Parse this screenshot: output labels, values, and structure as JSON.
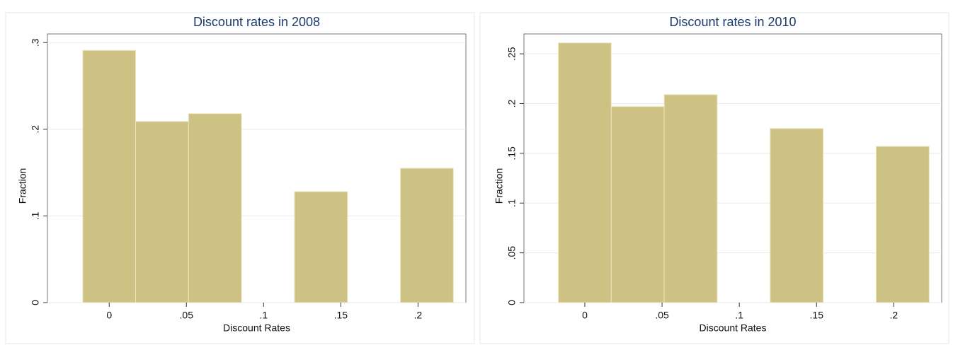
{
  "chart_data": [
    {
      "type": "histogram",
      "title": "Discount rates in 2008",
      "x_label": "Discount Rates",
      "y_label": "Fraction",
      "bins": [
        -0.0171,
        0.0171,
        0.0514,
        0.0857,
        0.12,
        0.1543,
        0.1886,
        0.2229
      ],
      "values": [
        0.291,
        0.209,
        0.218,
        0,
        0.128,
        0,
        0.155
      ],
      "color": "#cdc283",
      "xlim": [
        -0.04,
        0.231
      ],
      "ylim": [
        0,
        0.31
      ],
      "xticks": [
        0,
        {
          "value": 0.05,
          "label": ".05"
        },
        {
          "value": 0.1,
          "label": ".1"
        },
        {
          "value": 0.15,
          "label": ".15"
        },
        {
          "value": 0.2,
          "label": ".2"
        }
      ],
      "yticks": [
        0,
        {
          "value": 0.1,
          "label": ".1"
        },
        {
          "value": 0.2,
          "label": ".2"
        },
        {
          "value": 0.3,
          "label": ".3"
        }
      ],
      "grid": true
    },
    {
      "type": "histogram",
      "title": "Discount rates in 2010",
      "x_label": "Discount Rates",
      "y_label": "Fraction",
      "bins": [
        -0.0171,
        0.0171,
        0.0514,
        0.0857,
        0.12,
        0.1543,
        0.1886,
        0.2229
      ],
      "values": [
        0.261,
        0.197,
        0.209,
        0,
        0.175,
        0,
        0.157
      ],
      "color": "#cdc283",
      "xlim": [
        -0.0394,
        0.231
      ],
      "ylim": [
        0,
        0.27
      ],
      "xticks": [
        0,
        {
          "value": 0.05,
          "label": ".05"
        },
        {
          "value": 0.1,
          "label": ".1"
        },
        {
          "value": 0.15,
          "label": ".15"
        },
        {
          "value": 0.2,
          "label": ".2"
        }
      ],
      "yticks": [
        0,
        {
          "value": 0.05,
          "label": ".05"
        },
        {
          "value": 0.1,
          "label": ".1"
        },
        {
          "value": 0.15,
          "label": ".15"
        },
        {
          "value": 0.2,
          "label": ".2"
        },
        {
          "value": 0.25,
          "label": ".25"
        }
      ],
      "grid": true
    }
  ]
}
